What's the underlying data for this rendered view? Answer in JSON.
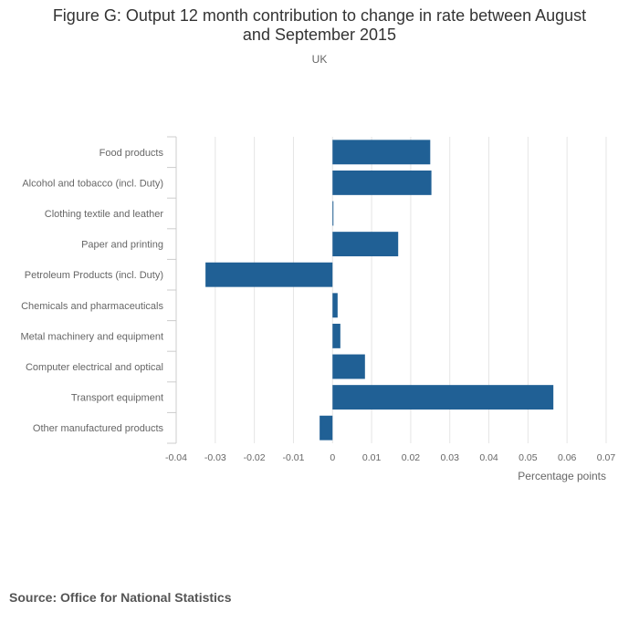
{
  "header": {
    "title_line1": "Figure G: Output 12 month contribution to change in rate between August",
    "title_line2": "and September 2015",
    "subtitle": "UK"
  },
  "chart_data": {
    "type": "bar",
    "orientation": "horizontal",
    "title": "Figure G: Output 12 month contribution to change in rate between August and September 2015",
    "subtitle": "UK",
    "categories": [
      "Food products",
      "Alcohol and tobacco (incl. Duty)",
      "Clothing textile and leather",
      "Paper and printing",
      "Petroleum Products (incl. Duty)",
      "Chemicals and pharmaceuticals",
      "Metal machinery and equipment",
      "Computer electrical and optical",
      "Transport equipment",
      "Other manufactured products"
    ],
    "values": [
      0.025,
      0.0253,
      0.0002,
      0.0168,
      -0.0325,
      0.0013,
      0.002,
      0.0083,
      0.0565,
      -0.0033
    ],
    "xlabel": "Percentage points",
    "ylabel": "",
    "xlim": [
      -0.04,
      0.07
    ],
    "xticks": [
      -0.04,
      -0.03,
      -0.02,
      -0.01,
      0,
      0.01,
      0.02,
      0.03,
      0.04,
      0.05,
      0.06,
      0.07
    ],
    "xtick_labels": [
      "-0.04",
      "-0.03",
      "-0.02",
      "-0.01",
      "0",
      "0.01",
      "0.02",
      "0.03",
      "0.04",
      "0.05",
      "0.06",
      "0.07"
    ],
    "grid": true,
    "bar_color": "#206095"
  },
  "footer": {
    "source": "Source: Office for National Statistics"
  }
}
